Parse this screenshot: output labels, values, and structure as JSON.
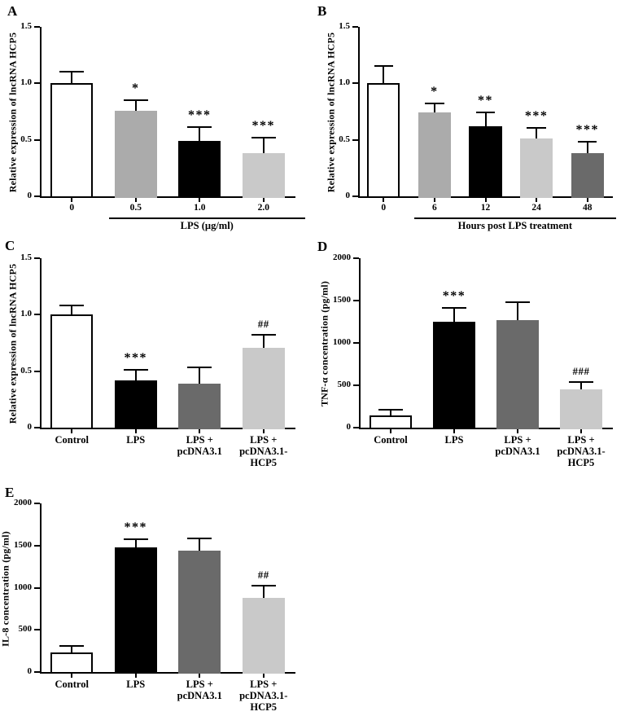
{
  "figure": {
    "background": "#ffffff",
    "axis_color": "#000000",
    "panel_letters": [
      "A",
      "B",
      "C",
      "D",
      "E"
    ]
  },
  "chart_data": [
    {
      "panel": "A",
      "type": "bar",
      "ylabel": "Relative expression of lncRNA HCP5",
      "ylim": [
        0,
        1.5
      ],
      "yticks": [
        "0",
        "0.5",
        "1.0",
        "1.5"
      ],
      "categories": [
        "0",
        "0.5",
        "1.0",
        "2.0"
      ],
      "values": [
        1.0,
        0.76,
        0.49,
        0.38
      ],
      "errors": [
        0.11,
        0.1,
        0.13,
        0.15
      ],
      "bar_colors": [
        "#FFFFFF",
        "#ABABAB",
        "#000000",
        "#C9C9C9"
      ],
      "annotations": [
        "",
        "*",
        "***",
        "***"
      ],
      "xlabel": "LPS (µg/ml)",
      "xlabel_bracket_from": 1,
      "legend": "none",
      "grid": false
    },
    {
      "panel": "B",
      "type": "bar",
      "ylabel": "Relative expression of lncRNA HCP5",
      "ylim": [
        0,
        1.5
      ],
      "yticks": [
        "0",
        "0.5",
        "1.0",
        "1.5"
      ],
      "categories": [
        "0",
        "6",
        "12",
        "24",
        "48"
      ],
      "values": [
        1.0,
        0.74,
        0.62,
        0.51,
        0.38
      ],
      "errors": [
        0.16,
        0.09,
        0.13,
        0.1,
        0.11
      ],
      "bar_colors": [
        "#FFFFFF",
        "#ABABAB",
        "#000000",
        "#C9C9C9",
        "#6A6A6A"
      ],
      "annotations": [
        "",
        "*",
        "**",
        "***",
        "***"
      ],
      "xlabel": "Hours post LPS treatment",
      "xlabel_bracket_from": 1,
      "legend": "none",
      "grid": false
    },
    {
      "panel": "C",
      "type": "bar",
      "ylabel": "Relative expression of lncRNA HCP5",
      "ylim": [
        0,
        1.5
      ],
      "yticks": [
        "0",
        "0.5",
        "1.0",
        "1.5"
      ],
      "categories": [
        "Control",
        "LPS",
        "LPS +\npcDNA3.1",
        "LPS +\npcDNA3.1-\nHCP5"
      ],
      "values": [
        1.0,
        0.42,
        0.39,
        0.71
      ],
      "errors": [
        0.09,
        0.1,
        0.15,
        0.12
      ],
      "bar_colors": [
        "#FFFFFF",
        "#000000",
        "#6A6A6A",
        "#C9C9C9"
      ],
      "annotations": [
        "",
        "***",
        "",
        "##"
      ],
      "xlabel": "",
      "legend": "none",
      "grid": false
    },
    {
      "panel": "D",
      "type": "bar",
      "ylabel": "TNF-α concentration (pg/ml)",
      "ylim": [
        0,
        2000
      ],
      "yticks": [
        "0",
        "500",
        "1000",
        "1500",
        "2000"
      ],
      "categories": [
        "Control",
        "LPS",
        "LPS +\npcDNA3.1",
        "LPS +\npcDNA3.1-\nHCP5"
      ],
      "values": [
        145,
        1250,
        1270,
        455
      ],
      "errors": [
        75,
        170,
        220,
        95
      ],
      "bar_colors": [
        "#FFFFFF",
        "#000000",
        "#6A6A6A",
        "#C9C9C9"
      ],
      "annotations": [
        "",
        "***",
        "",
        "###"
      ],
      "xlabel": "",
      "legend": "none",
      "grid": false
    },
    {
      "panel": "E",
      "type": "bar",
      "ylabel": "IL-8 concentration (pg/ml)",
      "ylim": [
        0,
        2000
      ],
      "yticks": [
        "0",
        "500",
        "1000",
        "1500",
        "2000"
      ],
      "categories": [
        "Control",
        "LPS",
        "LPS +\npcDNA3.1",
        "LPS +\npcDNA3.1-\nHCP5"
      ],
      "values": [
        230,
        1480,
        1435,
        880
      ],
      "errors": [
        90,
        100,
        155,
        150
      ],
      "bar_colors": [
        "#FFFFFF",
        "#000000",
        "#6A6A6A",
        "#C9C9C9"
      ],
      "annotations": [
        "",
        "***",
        "",
        "##"
      ],
      "xlabel": "",
      "legend": "none",
      "grid": false
    }
  ]
}
